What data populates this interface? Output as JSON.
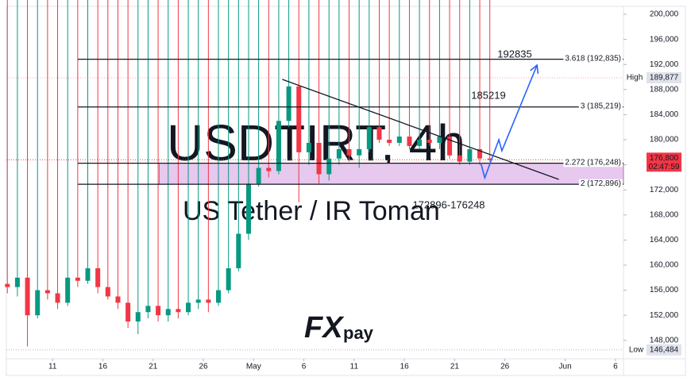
{
  "chart_data": {
    "type": "candlestick",
    "symbol": "USDTIRT, 4h",
    "subtitle": "US Tether / IR Toman",
    "logo": [
      "FX",
      "pay"
    ],
    "annotations": [
      "192835",
      "185219",
      "172896-176248"
    ],
    "x": [
      5.5,
      6.5,
      7.5,
      8.5,
      9.5,
      10.5,
      11.5,
      12.5,
      13.5,
      14.5,
      15.5,
      16.5,
      17.5,
      18.5,
      19.5,
      20.5,
      21.5,
      22.5,
      23.5,
      24.5,
      25.5,
      26.5,
      27.5,
      28.5,
      29.5,
      30.5,
      31.5,
      32.5,
      33.5,
      34.5,
      35.5,
      36.5,
      37.5,
      38.5,
      39.5,
      40.5,
      41.5,
      42.5,
      43.5,
      44.5,
      45.5,
      46.5,
      47.5,
      48.5,
      49.5,
      50.5,
      51.5,
      52.5,
      53.5
    ],
    "open": [
      157000,
      156500,
      158000,
      152000,
      156000,
      155500,
      154000,
      158000,
      157500,
      159500,
      156500,
      155000,
      154000,
      151000,
      152500,
      153500,
      152000,
      153000,
      152500,
      154000,
      154500,
      154000,
      156000,
      159500,
      165000,
      173000,
      175500,
      175000,
      183000,
      188500,
      178000,
      179500,
      174500,
      177000,
      178500,
      177500,
      178500,
      182000,
      180000,
      179500,
      180500,
      179000,
      180000,
      179500,
      180500,
      177500,
      176500,
      178500,
      177000
    ],
    "high": {
      "label": "High",
      "value": 189877,
      "value_label": "189,877"
    },
    "low": [
      155500,
      155000,
      147000,
      151500,
      154500,
      153000,
      153500,
      156500,
      157000,
      155500,
      154500,
      153000,
      150000,
      149000,
      151500,
      151000,
      151000,
      151500,
      152000,
      153000,
      152500,
      153500,
      155500,
      159000,
      164000,
      172500,
      174000,
      174500,
      182000,
      170000,
      176000,
      173000,
      173500,
      176000,
      176500,
      175500,
      178000,
      179500,
      179000,
      179000,
      178500,
      178500,
      179000,
      178500,
      177000,
      176000,
      176000,
      176000,
      176500
    ],
    "close": [
      156500,
      158000,
      152000,
      156000,
      155500,
      154000,
      158000,
      157500,
      159500,
      156500,
      155000,
      154000,
      151000,
      152500,
      153500,
      152000,
      153000,
      152500,
      154000,
      154500,
      154000,
      156000,
      159500,
      165000,
      173000,
      175500,
      175000,
      183000,
      188500,
      178000,
      179500,
      174500,
      177000,
      178500,
      177500,
      178500,
      182000,
      180000,
      179500,
      180500,
      179000,
      180000,
      179500,
      180500,
      177500,
      176500,
      178500,
      177000,
      176800
    ],
    "up_color": "#089981",
    "down_color": "#f23645",
    "levels": [
      {
        "value": 192835,
        "label": "3.618 (192,835)"
      },
      {
        "value": 185219,
        "label": "3 (185,219)"
      },
      {
        "value": 176248,
        "label": "2.272 (176,248)"
      },
      {
        "value": 172896,
        "label": "2 (172,896)"
      }
    ],
    "zone_start": 20.6,
    "trendline": {
      "x": [
        32.85,
        60.36
      ],
      "y": [
        189620,
        173670
      ]
    },
    "projection": {
      "x": [
        52.6,
        53.0,
        54.4,
        54.7,
        58.2
      ],
      "y": [
        176329,
        173924,
        180000,
        178228,
        191899
      ],
      "color": "#2962ff"
    },
    "low_mark": {
      "label": "Low",
      "value": 146484,
      "value_label": "146,484"
    },
    "last": {
      "value": 176800,
      "value_label": "176,800",
      "countdown": "02:47:59"
    },
    "xlim": [
      5.4,
      66.8
    ],
    "xticks": [
      {
        "value": 10,
        "label": "11"
      },
      {
        "value": 15,
        "label": "16"
      },
      {
        "value": 20,
        "label": "21"
      },
      {
        "value": 25,
        "label": "26"
      },
      {
        "value": 30,
        "label": "May"
      },
      {
        "value": 35,
        "label": "6"
      },
      {
        "value": 40,
        "label": "11"
      },
      {
        "value": 45,
        "label": "16"
      },
      {
        "value": 50,
        "label": "21"
      },
      {
        "value": 55,
        "label": "26"
      },
      {
        "value": 61,
        "label": "Jun"
      },
      {
        "value": 66,
        "label": "6"
      }
    ],
    "ylim": [
      145060,
      201270
    ],
    "yticks": [
      {
        "value": 148000,
        "label": "148,000"
      },
      {
        "value": 152000,
        "label": "152,000"
      },
      {
        "value": 156000,
        "label": "156,000"
      },
      {
        "value": 160000,
        "label": "160,000"
      },
      {
        "value": 164000,
        "label": "164,000"
      },
      {
        "value": 168000,
        "label": "168,000"
      },
      {
        "value": 172000,
        "label": "172,000"
      },
      {
        "value": 176000,
        "label": "176,000"
      },
      {
        "value": 180000,
        "label": "180,000"
      },
      {
        "value": 184000,
        "label": "184,000"
      },
      {
        "value": 188000,
        "label": "188,000"
      },
      {
        "value": 192000,
        "label": "192,000"
      },
      {
        "value": 196000,
        "label": "196,000"
      },
      {
        "value": 200000,
        "label": "200,000"
      }
    ]
  }
}
